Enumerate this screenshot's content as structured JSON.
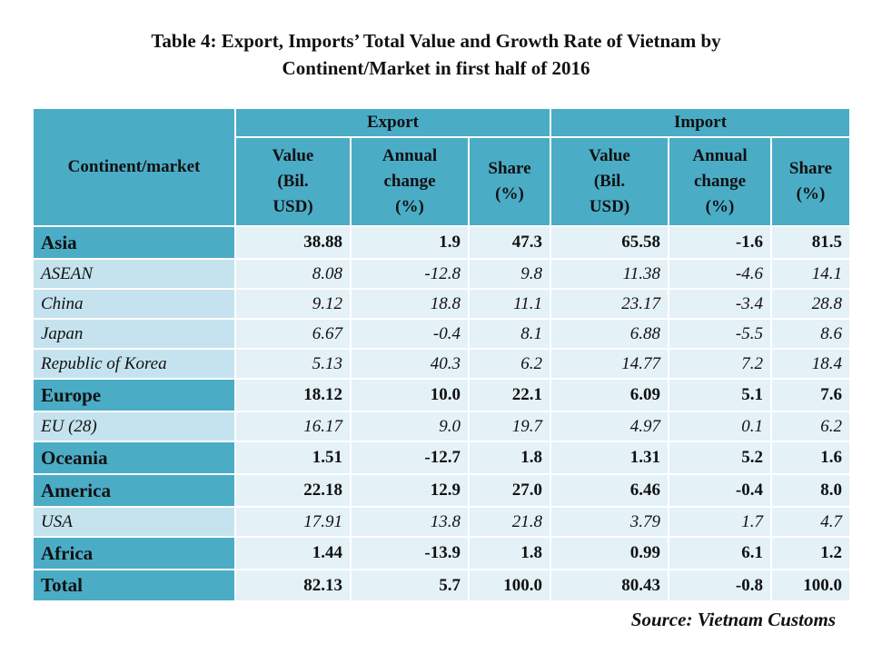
{
  "title": [
    "Table 4: Export, Imports’ Total Value and Growth Rate of Vietnam by",
    "Continent/Market in first half of 2016"
  ],
  "table": {
    "header": {
      "first": "Continent/market",
      "groups": [
        "Export",
        "Import"
      ],
      "columns": [
        [
          "Value",
          "(Bil.",
          "USD)"
        ],
        [
          "Annual",
          "change",
          "(%)"
        ],
        [
          "Share",
          "(%)"
        ],
        [
          "Value",
          "(Bil.",
          "USD)"
        ],
        [
          "Annual",
          "change",
          "(%)"
        ],
        [
          "Share",
          "(%)"
        ]
      ]
    },
    "rows": [
      {
        "cells": [
          "Asia",
          "38.88",
          "1.9",
          "47.3",
          "65.58",
          "-1.6",
          "81.5"
        ],
        "sub": [
          {
            "cells": [
              "ASEAN",
              "8.08",
              "-12.8",
              "9.8",
              "11.38",
              "-4.6",
              "14.1"
            ]
          },
          {
            "cells": [
              "China",
              "9.12",
              "18.8",
              "11.1",
              "23.17",
              "-3.4",
              "28.8"
            ]
          },
          {
            "cells": [
              "Japan",
              "6.67",
              "-0.4",
              "8.1",
              "6.88",
              "-5.5",
              "8.6"
            ]
          },
          {
            "cells": [
              "Republic of Korea",
              "5.13",
              "40.3",
              "6.2",
              "14.77",
              "7.2",
              "18.4"
            ]
          }
        ]
      },
      {
        "cells": [
          "Europe",
          "18.12",
          "10.0",
          "22.1",
          "6.09",
          "5.1",
          "7.6"
        ],
        "sub": [
          {
            "cells": [
              "EU (28)",
              "16.17",
              "9.0",
              "19.7",
              "4.97",
              "0.1",
              "6.2"
            ]
          }
        ]
      },
      {
        "cells": [
          "Oceania",
          "1.51",
          "-12.7",
          "1.8",
          "1.31",
          "5.2",
          "1.6"
        ],
        "sub": []
      },
      {
        "cells": [
          "America",
          "22.18",
          "12.9",
          "27.0",
          "6.46",
          "-0.4",
          "8.0"
        ],
        "sub": [
          {
            "cells": [
              "USA",
              "17.91",
              "13.8",
              "21.8",
              "3.79",
              "1.7",
              "4.7"
            ]
          }
        ]
      },
      {
        "cells": [
          "Africa",
          "1.44",
          "-13.9",
          "1.8",
          "0.99",
          "6.1",
          "1.2"
        ],
        "sub": []
      }
    ],
    "total": [
      "Total",
      "82.13",
      "5.7",
      "100.0",
      "80.43",
      "-0.8",
      "100.0"
    ]
  },
  "source": "Source: Vietnam Customs"
}
